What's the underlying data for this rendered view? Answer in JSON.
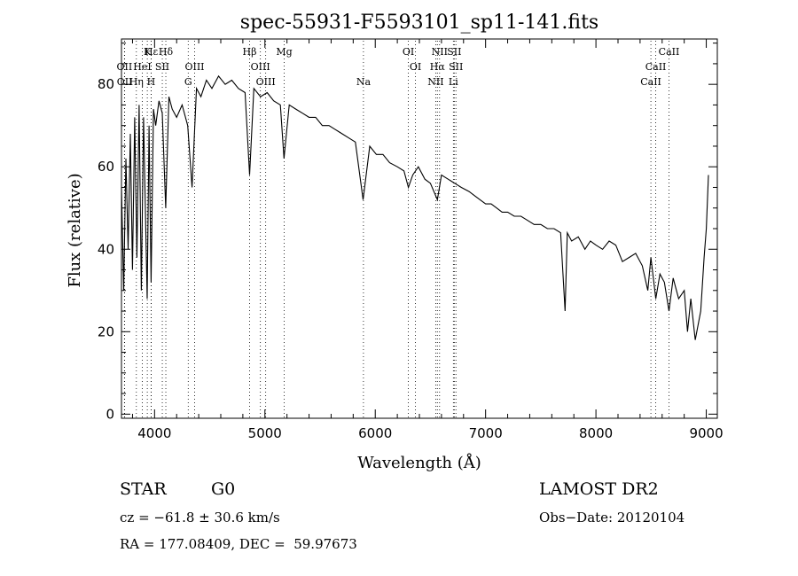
{
  "chart_data": {
    "type": "line",
    "title": "spec-55931-F5593101_sp11-141.fits",
    "xlabel": "Wavelength (Å)",
    "ylabel": "Flux (relative)",
    "xlim": [
      3700,
      9100
    ],
    "ylim": [
      -1,
      91
    ],
    "xticks": [
      4000,
      5000,
      6000,
      7000,
      8000,
      9000
    ],
    "yticks": [
      0,
      20,
      40,
      60,
      80
    ],
    "grid": false,
    "series": [
      {
        "x": [
          3700,
          3720,
          3740,
          3760,
          3780,
          3800,
          3820,
          3840,
          3860,
          3880,
          3900,
          3920,
          3933,
          3950,
          3968,
          3990,
          4010,
          4040,
          4070,
          4101,
          4130,
          4160,
          4200,
          4250,
          4300,
          4340,
          4380,
          4420,
          4470,
          4520,
          4580,
          4640,
          4700,
          4760,
          4820,
          4861,
          4900,
          4960,
          5020,
          5080,
          5140,
          5173,
          5220,
          5280,
          5340,
          5400,
          5460,
          5520,
          5580,
          5640,
          5700,
          5760,
          5820,
          5890,
          5950,
          6010,
          6070,
          6130,
          6200,
          6260,
          6300,
          6340,
          6390,
          6450,
          6500,
          6563,
          6600,
          6660,
          6720,
          6780,
          6850,
          6900,
          6950,
          7000,
          7050,
          7100,
          7150,
          7200,
          7260,
          7320,
          7380,
          7440,
          7500,
          7560,
          7620,
          7680,
          7720,
          7740,
          7780,
          7840,
          7900,
          7950,
          8000,
          8060,
          8120,
          8180,
          8240,
          8300,
          8360,
          8420,
          8470,
          8498,
          8542,
          8580,
          8620,
          8662,
          8700,
          8750,
          8800,
          8830,
          8860,
          8900,
          8950,
          8980,
          9000,
          9020
        ],
        "y": [
          55,
          30,
          62,
          40,
          68,
          35,
          72,
          38,
          75,
          30,
          72,
          45,
          28,
          70,
          32,
          74,
          70,
          76,
          73,
          50,
          77,
          74,
          72,
          75,
          70,
          55,
          79,
          77,
          81,
          79,
          82,
          80,
          81,
          79,
          78,
          58,
          79,
          77,
          78,
          76,
          75,
          62,
          75,
          74,
          73,
          72,
          72,
          70,
          70,
          69,
          68,
          67,
          66,
          52,
          65,
          63,
          63,
          61,
          60,
          59,
          55,
          58,
          60,
          57,
          56,
          52,
          58,
          57,
          56,
          55,
          54,
          53,
          52,
          51,
          51,
          50,
          49,
          49,
          48,
          48,
          47,
          46,
          46,
          45,
          45,
          44,
          25,
          44,
          42,
          43,
          40,
          42,
          41,
          40,
          42,
          41,
          37,
          38,
          39,
          36,
          30,
          38,
          28,
          34,
          32,
          25,
          33,
          28,
          30,
          20,
          28,
          18,
          25,
          38,
          45,
          58
        ]
      }
    ],
    "lines": [
      {
        "label": "Hε",
        "wave": 3970,
        "row": 0
      },
      {
        "label": "K",
        "wave": 3934,
        "row": 0
      },
      {
        "label": "Hδ",
        "wave": 4102,
        "row": 0
      },
      {
        "label": "OII",
        "wave": 3727,
        "row": 1
      },
      {
        "label": "HeI",
        "wave": 3889,
        "row": 1
      },
      {
        "label": "SII",
        "wave": 4070,
        "row": 1
      },
      {
        "label": "OIII",
        "wave": 4363,
        "row": 1
      },
      {
        "label": "OII",
        "wave": 3729,
        "row": 2
      },
      {
        "label": "Hη",
        "wave": 3835,
        "row": 2
      },
      {
        "label": "H",
        "wave": 3969,
        "row": 2
      },
      {
        "label": "G",
        "wave": 4305,
        "row": 2
      },
      {
        "label": "Hβ",
        "wave": 4861,
        "row": 0
      },
      {
        "label": "Mg",
        "wave": 5175,
        "row": 0
      },
      {
        "label": "OIII",
        "wave": 4959,
        "row": 1
      },
      {
        "label": "OIII",
        "wave": 5007,
        "row": 2
      },
      {
        "label": "Na",
        "wave": 5893,
        "row": 2
      },
      {
        "label": "OI",
        "wave": 6300,
        "row": 0
      },
      {
        "label": "OI",
        "wave": 6364,
        "row": 1
      },
      {
        "label": "NII",
        "wave": 6583,
        "row": 0
      },
      {
        "label": "SII",
        "wave": 6716,
        "row": 0
      },
      {
        "label": "Hα",
        "wave": 6563,
        "row": 1
      },
      {
        "label": "SII",
        "wave": 6731,
        "row": 1
      },
      {
        "label": "NII",
        "wave": 6548,
        "row": 2
      },
      {
        "label": "Li",
        "wave": 6708,
        "row": 2
      },
      {
        "label": "CaII",
        "wave": 8662,
        "row": 0
      },
      {
        "label": "CaII",
        "wave": 8542,
        "row": 1
      },
      {
        "label": "CaII",
        "wave": 8498,
        "row": 2
      }
    ]
  },
  "info": {
    "class": "STAR",
    "subclass": "G0",
    "survey": "LAMOST DR2",
    "cz": "cz = −61.8 ± 30.6 km/s",
    "obs_date": "Obs−Date: 20120104",
    "radec": "RA = 177.08409, DEC =  59.97673"
  }
}
